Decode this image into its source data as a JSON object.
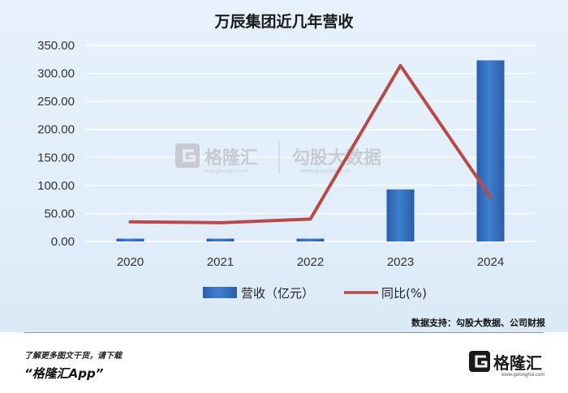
{
  "chart_data": {
    "type": "bar+line",
    "title": "万辰集团近几年营收",
    "categories": [
      "2020",
      "2021",
      "2022",
      "2023",
      "2024"
    ],
    "series": [
      {
        "name": "营收（亿元）",
        "type": "bar",
        "values": [
          5.0,
          5.0,
          5.0,
          92.9,
          323.3
        ],
        "color": "#2f67b5"
      },
      {
        "name": "同比(%)",
        "type": "line",
        "values": [
          35,
          33.5,
          40,
          314,
          79
        ],
        "color": "#b84a4a"
      }
    ],
    "y_ticks": [
      "0.00",
      "50.00",
      "100.00",
      "150.00",
      "200.00",
      "250.00",
      "300.00",
      "350.00"
    ],
    "ylim": [
      0,
      350
    ],
    "grid": true,
    "legend_position": "bottom-center",
    "source": "数据支持：勾股大数据、公司财报"
  },
  "watermark": {
    "brand_left": "格隆汇",
    "domain_left": "www.gelonghui.com",
    "brand_right": "勾股大数据",
    "domain_right": "www.gogudata.com"
  },
  "footer": {
    "note": "了解更多图文干货，请下载",
    "slogan": "“格隆汇App”",
    "logo_name": "格隆汇",
    "logo_domain": "www.gelonghui.com"
  }
}
